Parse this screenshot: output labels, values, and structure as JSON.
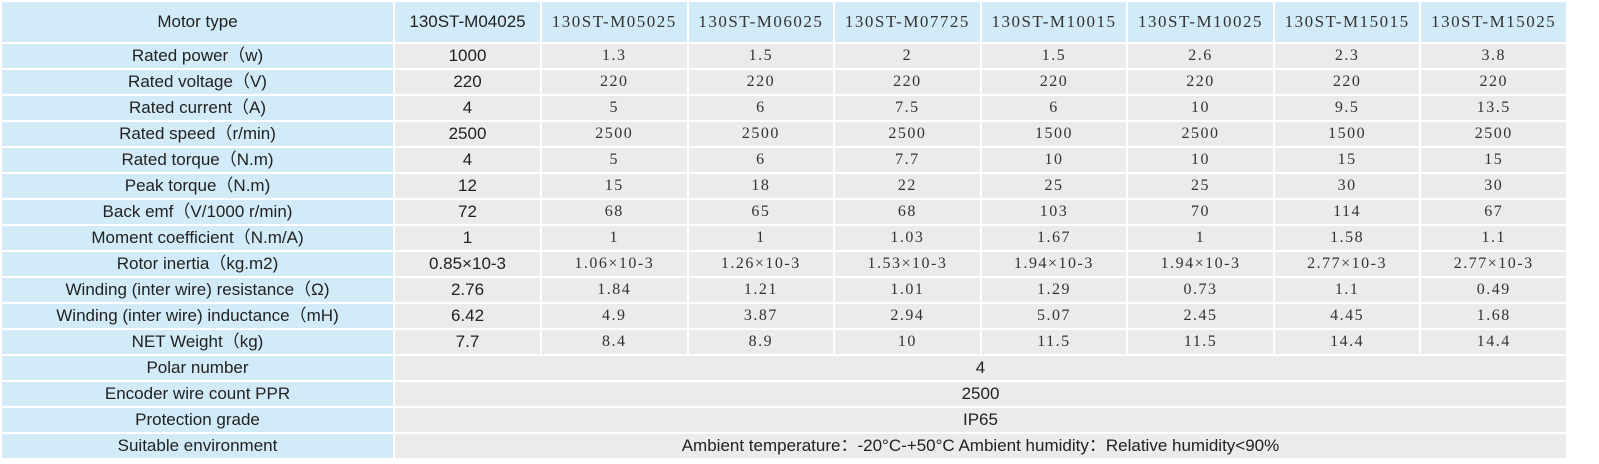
{
  "table": {
    "header": [
      "Motor type",
      "130ST-M04025",
      "130ST-M05025",
      "130ST-M06025",
      "130ST-M07725",
      "130ST-M10015",
      "130ST-M10025",
      "130ST-M15015",
      "130ST-M15025"
    ],
    "rows": [
      [
        "Rated power（w)",
        "1000",
        "1.3",
        "1.5",
        "2",
        "1.5",
        "2.6",
        "2.3",
        "3.8"
      ],
      [
        "Rated voltage（V)",
        "220",
        "220",
        "220",
        "220",
        "220",
        "220",
        "220",
        "220"
      ],
      [
        "Rated current（A)",
        "4",
        "5",
        "6",
        "7.5",
        "6",
        "10",
        "9.5",
        "13.5"
      ],
      [
        "Rated speed（r/min)",
        "2500",
        "2500",
        "2500",
        "2500",
        "1500",
        "2500",
        "1500",
        "2500"
      ],
      [
        "Rated torque（N.m)",
        "4",
        "5",
        "6",
        "7.7",
        "10",
        "10",
        "15",
        "15"
      ],
      [
        "Peak torque（N.m)",
        "12",
        "15",
        "18",
        "22",
        "25",
        "25",
        "30",
        "30"
      ],
      [
        "Back emf（V/1000 r/min)",
        "72",
        "68",
        "65",
        "68",
        "103",
        "70",
        "114",
        "67"
      ],
      [
        "Moment coefficient（N.m/A)",
        "1",
        "1",
        "1",
        "1.03",
        "1.67",
        "1",
        "1.58",
        "1.1"
      ],
      [
        "Rotor inertia（kg.m2)",
        "0.85×10-3",
        "1.06×10-3",
        "1.26×10-3",
        "1.53×10-3",
        "1.94×10-3",
        "1.94×10-3",
        "2.77×10-3",
        "2.77×10-3"
      ],
      [
        "Winding (inter wire) resistance（Ω)",
        "2.76",
        "1.84",
        "1.21",
        "1.01",
        "1.29",
        "0.73",
        "1.1",
        "0.49"
      ],
      [
        "Winding (inter wire) inductance（mH)",
        "6.42",
        "4.9",
        "3.87",
        "2.94",
        "5.07",
        "2.45",
        "4.45",
        "1.68"
      ],
      [
        "NET Weight（kg)",
        "7.7",
        "8.4",
        "8.9",
        "10",
        "11.5",
        "11.5",
        "14.4",
        "14.4"
      ]
    ],
    "span_rows": [
      [
        "Polar number",
        "4"
      ],
      [
        "Encoder wire count PPR",
        "2500"
      ],
      [
        "Protection grade",
        "IP65"
      ],
      [
        "Suitable environment",
        "Ambient temperature：-20°C-+50°C   Ambient humidity：Relative humidity<90%"
      ]
    ]
  }
}
